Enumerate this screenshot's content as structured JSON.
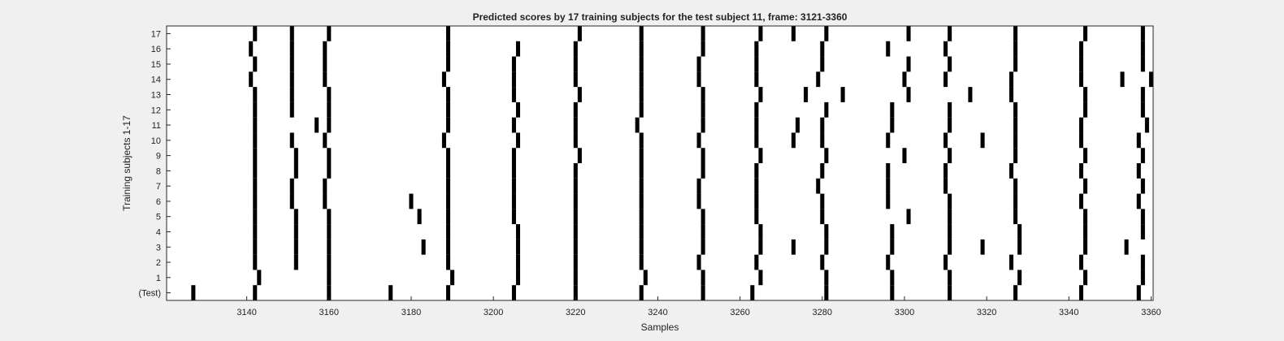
{
  "chart_data": {
    "type": "heatmap",
    "title": "Predicted scores by 17 training subjects for the test subject 11, frame: 3121-3360",
    "xlabel": "Samples",
    "ylabel": "Training subjects 1-17",
    "xlim": [
      3121,
      3360
    ],
    "xticks": [
      "3140",
      "3160",
      "3180",
      "3200",
      "3220",
      "3240",
      "3260",
      "3280",
      "3300",
      "3320",
      "3340",
      "3360"
    ],
    "xtick_values": [
      3140,
      3160,
      3180,
      3200,
      3220,
      3240,
      3260,
      3280,
      3300,
      3320,
      3340,
      3360
    ],
    "yticks": [
      "(Test)",
      "1",
      "2",
      "3",
      "4",
      "5",
      "6",
      "7",
      "8",
      "9",
      "10",
      "11",
      "12",
      "13",
      "14",
      "15",
      "16",
      "17"
    ],
    "colors": {
      "background": "#ffffff",
      "mark": "#000000"
    },
    "rows": [
      {
        "label": "(Test)",
        "x": [
          3127,
          3142,
          3160,
          3175,
          3189,
          3205,
          3220,
          3236,
          3251,
          3263,
          3281,
          3297,
          3311,
          3327,
          3343,
          3357
        ]
      },
      {
        "label": "1",
        "x": [
          3143,
          3160,
          3190,
          3206,
          3220,
          3237,
          3251,
          3265,
          3281,
          3297,
          3311,
          3328,
          3344,
          3358
        ]
      },
      {
        "label": "2",
        "x": [
          3142,
          3152,
          3160,
          3189,
          3206,
          3220,
          3236,
          3250,
          3264,
          3280,
          3296,
          3310,
          3326,
          3343,
          3358
        ]
      },
      {
        "label": "3",
        "x": [
          3142,
          3152,
          3160,
          3183,
          3189,
          3206,
          3220,
          3236,
          3251,
          3265,
          3273,
          3281,
          3297,
          3311,
          3319,
          3328,
          3344,
          3354
        ]
      },
      {
        "label": "4",
        "x": [
          3142,
          3152,
          3160,
          3189,
          3206,
          3220,
          3236,
          3251,
          3265,
          3281,
          3297,
          3311,
          3328,
          3344,
          3358
        ]
      },
      {
        "label": "5",
        "x": [
          3142,
          3152,
          3160,
          3182,
          3189,
          3205,
          3220,
          3236,
          3251,
          3264,
          3280,
          3301,
          3311,
          3327,
          3344,
          3358
        ]
      },
      {
        "label": "6",
        "x": [
          3142,
          3151,
          3159,
          3180,
          3189,
          3205,
          3220,
          3236,
          3250,
          3264,
          3280,
          3296,
          3311,
          3327,
          3343,
          3357
        ]
      },
      {
        "label": "7",
        "x": [
          3142,
          3151,
          3159,
          3189,
          3205,
          3220,
          3236,
          3250,
          3264,
          3279,
          3296,
          3310,
          3327,
          3344,
          3358
        ]
      },
      {
        "label": "8",
        "x": [
          3142,
          3152,
          3160,
          3189,
          3205,
          3220,
          3236,
          3251,
          3264,
          3280,
          3296,
          3310,
          3326,
          3343,
          3357
        ]
      },
      {
        "label": "9",
        "x": [
          3142,
          3152,
          3160,
          3189,
          3205,
          3221,
          3236,
          3251,
          3265,
          3281,
          3300,
          3311,
          3327,
          3344,
          3358
        ]
      },
      {
        "label": "10",
        "x": [
          3142,
          3151,
          3159,
          3188,
          3206,
          3220,
          3236,
          3250,
          3264,
          3273,
          3280,
          3296,
          3310,
          3319,
          3327,
          3343,
          3357
        ]
      },
      {
        "label": "11",
        "x": [
          3142,
          3157,
          3160,
          3189,
          3205,
          3220,
          3235,
          3251,
          3264,
          3274,
          3280,
          3297,
          3311,
          3327,
          3343,
          3359
        ]
      },
      {
        "label": "12",
        "x": [
          3142,
          3151,
          3160,
          3189,
          3206,
          3220,
          3236,
          3251,
          3264,
          3281,
          3297,
          3311,
          3327,
          3344,
          3358
        ]
      },
      {
        "label": "13",
        "x": [
          3142,
          3151,
          3160,
          3189,
          3205,
          3221,
          3236,
          3251,
          3265,
          3276,
          3285,
          3301,
          3316,
          3326,
          3344,
          3358
        ]
      },
      {
        "label": "14",
        "x": [
          3141,
          3151,
          3159,
          3188,
          3205,
          3220,
          3236,
          3250,
          3264,
          3279,
          3300,
          3310,
          3326,
          3343,
          3353,
          3360
        ]
      },
      {
        "label": "15",
        "x": [
          3142,
          3151,
          3159,
          3189,
          3205,
          3220,
          3236,
          3250,
          3264,
          3280,
          3301,
          3311,
          3327,
          3343,
          3358
        ]
      },
      {
        "label": "16",
        "x": [
          3141,
          3151,
          3159,
          3189,
          3206,
          3220,
          3236,
          3251,
          3264,
          3280,
          3296,
          3310,
          3327,
          3343,
          3358
        ]
      },
      {
        "label": "17",
        "x": [
          3142,
          3151,
          3160,
          3189,
          3221,
          3236,
          3251,
          3265,
          3273,
          3281,
          3301,
          3311,
          3327,
          3344,
          3358
        ]
      }
    ]
  }
}
